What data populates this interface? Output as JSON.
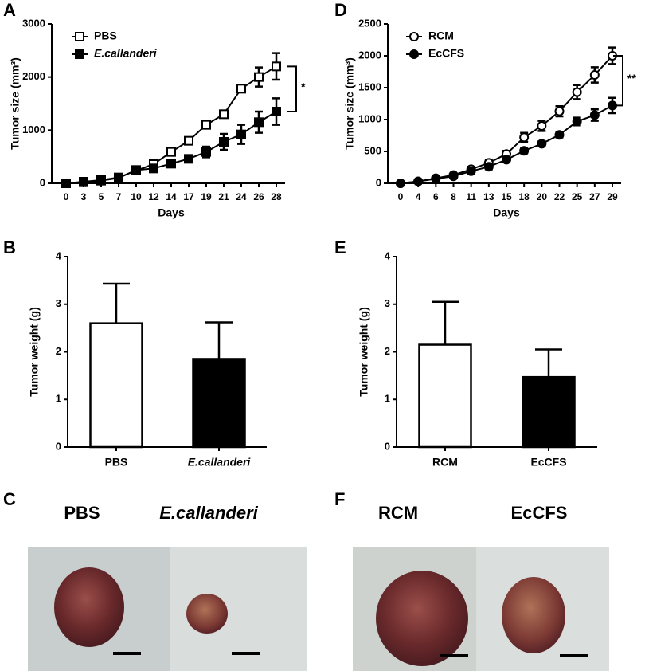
{
  "chart_data": [
    {
      "type": "line",
      "panel": "A",
      "xlabel": "Days",
      "ylabel": "Tumor size (mm³)",
      "categories": [
        "0",
        "3",
        "5",
        "7",
        "10",
        "12",
        "14",
        "17",
        "19",
        "21",
        "24",
        "26",
        "28"
      ],
      "ylim": [
        0,
        3000
      ],
      "yticks": [
        0,
        1000,
        2000,
        3000
      ],
      "annotation": "*",
      "series": [
        {
          "name": "PBS",
          "color": "#000000",
          "marker": "square",
          "filled": false,
          "italic": false,
          "values": [
            0,
            30,
            60,
            110,
            240,
            360,
            590,
            800,
            1100,
            1300,
            1780,
            2000,
            2200
          ],
          "errors": [
            10,
            10,
            15,
            20,
            30,
            40,
            40,
            50,
            40,
            50,
            60,
            180,
            250
          ]
        },
        {
          "name": "E.callanderi",
          "color": "#000000",
          "marker": "square",
          "filled": true,
          "italic": true,
          "values": [
            0,
            20,
            50,
            100,
            250,
            280,
            370,
            460,
            590,
            780,
            920,
            1150,
            1350
          ],
          "errors": [
            10,
            10,
            15,
            20,
            30,
            40,
            40,
            60,
            100,
            150,
            180,
            200,
            250
          ]
        }
      ]
    },
    {
      "type": "bar",
      "panel": "B",
      "ylabel": "Tumor weight (g)",
      "categories": [
        "PBS",
        "E.callanderi"
      ],
      "category_styles": [
        "normal",
        "italic"
      ],
      "values": [
        2.6,
        1.85
      ],
      "errors": [
        0.83,
        0.77
      ],
      "colors": [
        "#ffffff",
        "#000000"
      ],
      "ylim": [
        0,
        4
      ],
      "yticks": [
        0,
        1,
        2,
        3,
        4
      ]
    },
    {
      "type": "line",
      "panel": "D",
      "xlabel": "Days",
      "ylabel": "Tumor size (mm³)",
      "categories": [
        "0",
        "4",
        "6",
        "8",
        "11",
        "13",
        "15",
        "18",
        "20",
        "22",
        "25",
        "27",
        "29"
      ],
      "ylim": [
        0,
        2500
      ],
      "yticks": [
        0,
        500,
        1000,
        1500,
        2000,
        2500
      ],
      "annotation": "**",
      "series": [
        {
          "name": "RCM",
          "color": "#000000",
          "marker": "circle",
          "filled": false,
          "italic": false,
          "values": [
            0,
            30,
            80,
            130,
            220,
            320,
            460,
            720,
            900,
            1130,
            1430,
            1700,
            2000
          ],
          "errors": [
            20,
            20,
            20,
            30,
            40,
            50,
            50,
            70,
            80,
            80,
            110,
            120,
            130
          ]
        },
        {
          "name": "EcCFS",
          "color": "#000000",
          "marker": "circle",
          "filled": true,
          "italic": false,
          "values": [
            0,
            30,
            70,
            110,
            190,
            260,
            370,
            510,
            620,
            760,
            970,
            1070,
            1220
          ],
          "errors": [
            20,
            20,
            20,
            30,
            40,
            40,
            40,
            40,
            40,
            40,
            60,
            90,
            120
          ]
        }
      ]
    },
    {
      "type": "bar",
      "panel": "E",
      "ylabel": "Tumor weight (g)",
      "categories": [
        "RCM",
        "EcCFS"
      ],
      "category_styles": [
        "normal",
        "normal"
      ],
      "values": [
        2.15,
        1.47
      ],
      "errors": [
        0.9,
        0.58
      ],
      "colors": [
        "#ffffff",
        "#000000"
      ],
      "ylim": [
        0,
        4
      ],
      "yticks": [
        0,
        1,
        2,
        3,
        4
      ]
    }
  ],
  "photos": [
    {
      "panel": "C",
      "labels": [
        "PBS",
        "E.callanderi"
      ]
    },
    {
      "panel": "F",
      "labels": [
        "RCM",
        "EcCFS"
      ]
    }
  ]
}
